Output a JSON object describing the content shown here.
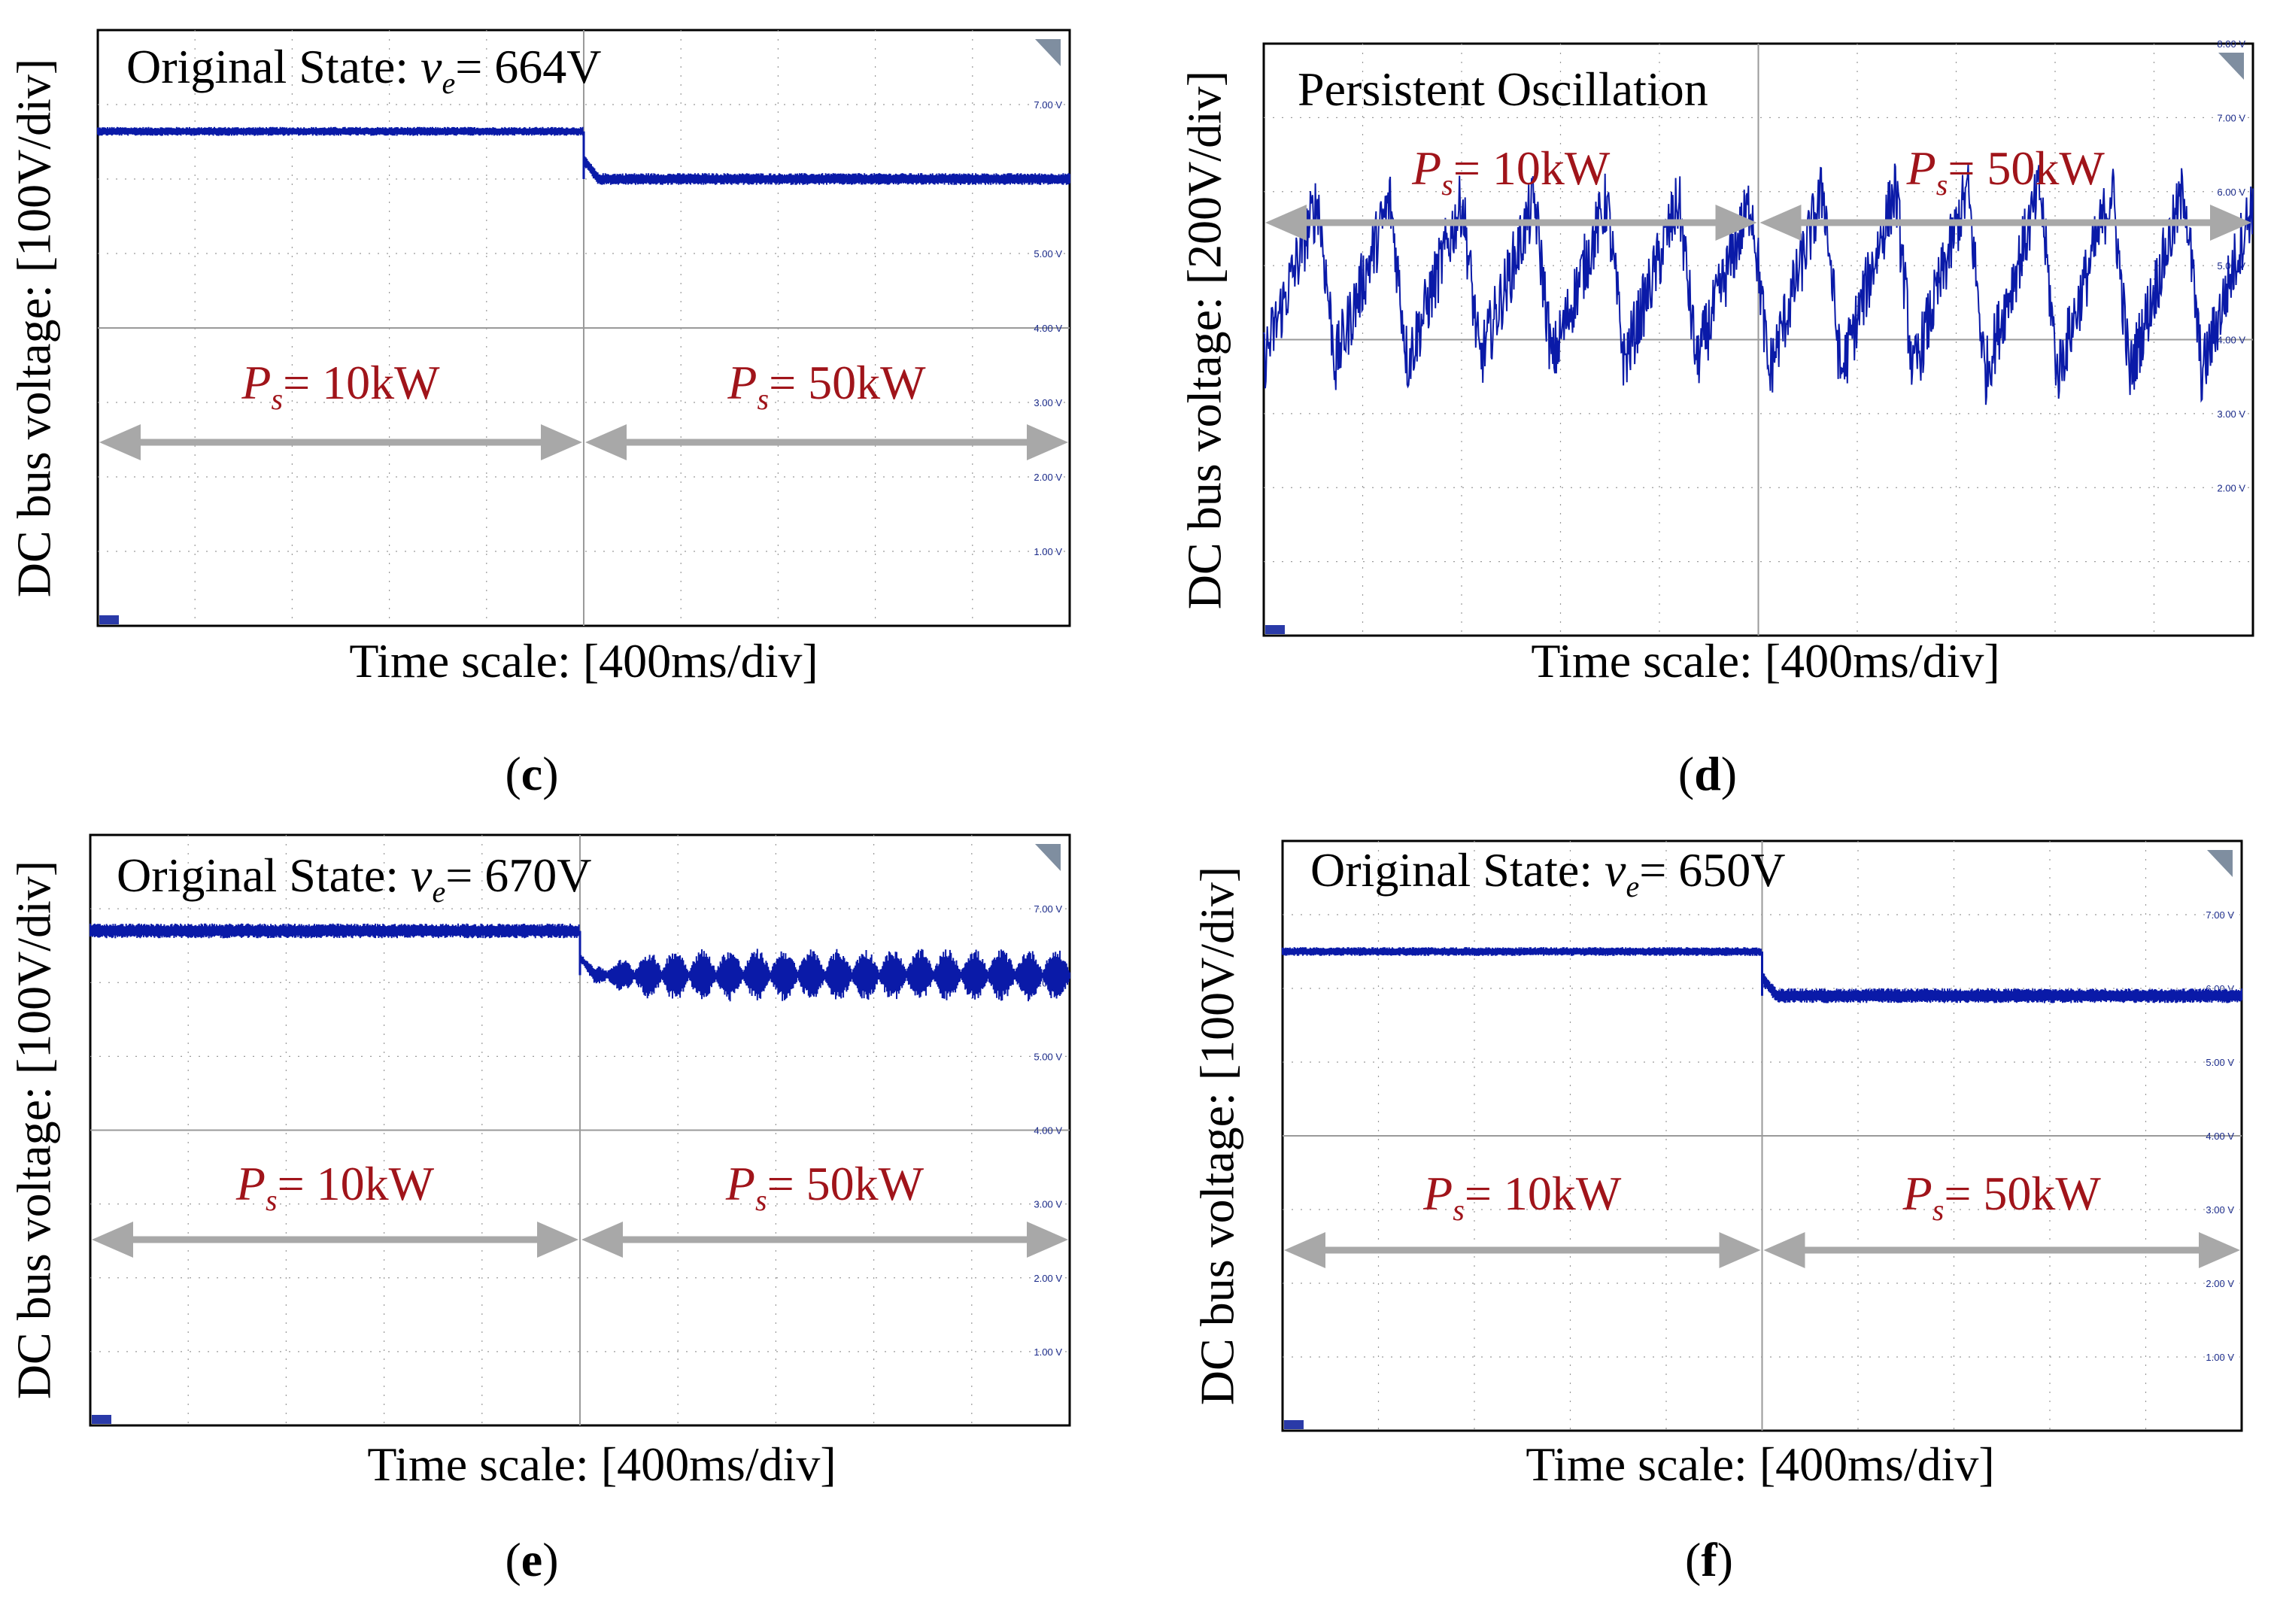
{
  "chart_data": [
    {
      "panel_label": "(c)",
      "type": "line",
      "title_prefix": "Original State: ",
      "title_var": "v",
      "title_sub": "e",
      "title_value": "= 664V",
      "ylabel": "DC bus voltage: [100V/div]",
      "xlabel": "Time scale: [400ms/div]",
      "y_ticks": [
        "7.00 V",
        "6.00 V",
        "5.00 V",
        "4.00 V",
        "3.00 V",
        "2.00 V",
        "1.00 V"
      ],
      "y_tick_values": [
        700,
        600,
        500,
        400,
        300,
        200,
        100
      ],
      "ylim": [
        0,
        800
      ],
      "xlim": [
        0,
        10
      ],
      "grid": true,
      "annotations": [
        {
          "var": "P",
          "sub": "s",
          "value": "= 10kW"
        },
        {
          "var": "P",
          "sub": "s",
          "value": "= 50kW"
        }
      ],
      "step_time_div": 5,
      "series": [
        {
          "behavior": "steady",
          "before_v": 664,
          "after_v": 600,
          "ripple_before": 6,
          "ripple_after": 8
        }
      ],
      "line_color": "#0a1aa8"
    },
    {
      "panel_label": "(d)",
      "type": "line",
      "title_text": "Persistent Oscillation",
      "ylabel": "DC bus voltage: [200V/div]",
      "xlabel": "Time scale: [400ms/div]",
      "y_ticks": [
        "8.00 V",
        "7.00 V",
        "6.00 V",
        "5.00 V",
        "4.00 V",
        "3.00 V",
        "2.00 V"
      ],
      "y_tick_values": [
        800,
        700,
        600,
        500,
        400,
        300,
        200
      ],
      "ylim": [
        0,
        800
      ],
      "xlim": [
        0,
        10
      ],
      "grid": true,
      "annotations": [
        {
          "var": "P",
          "sub": "s",
          "value": "= 10kW"
        },
        {
          "var": "P",
          "sub": "s",
          "value": "= 50kW"
        }
      ],
      "step_time_div": 5,
      "series": [
        {
          "behavior": "oscillation",
          "center_v": 480,
          "amplitude_v": 120,
          "period_div": 0.73
        }
      ],
      "line_color": "#0a1aa8"
    },
    {
      "panel_label": "(e)",
      "type": "line",
      "title_prefix": "Original State:  ",
      "title_var": "v",
      "title_sub": "e",
      "title_value": "= 670V",
      "ylabel": "DC bus voltage: [100V/div]",
      "xlabel": "Time scale: [400ms/div]",
      "y_ticks": [
        "7.00 V",
        "6.00 V",
        "5.00 V",
        "4.00 V",
        "3.00 V",
        "2.00 V",
        "1.00 V"
      ],
      "y_tick_values": [
        700,
        600,
        500,
        400,
        300,
        200,
        100
      ],
      "ylim": [
        0,
        800
      ],
      "xlim": [
        0,
        10
      ],
      "grid": true,
      "annotations": [
        {
          "var": "P",
          "sub": "s",
          "value": "= 10kW"
        },
        {
          "var": "P",
          "sub": "s",
          "value": "= 50kW"
        }
      ],
      "step_time_div": 5,
      "series": [
        {
          "behavior": "beating",
          "before_v": 670,
          "after_v": 610,
          "ripple_before": 10,
          "ripple_after": 30
        }
      ],
      "line_color": "#0a1aa8"
    },
    {
      "panel_label": "(f)",
      "type": "line",
      "title_prefix": "Original State:  ",
      "title_var": "v",
      "title_sub": "e",
      "title_value": "= 650V",
      "ylabel": "DC bus voltage: [100V/div]",
      "xlabel": "Time scale: [400ms/div]",
      "y_ticks": [
        "7.00 V",
        "6.00 V",
        "5.00 V",
        "4.00 V",
        "3.00 V",
        "2.00 V",
        "1.00 V"
      ],
      "y_tick_values": [
        700,
        600,
        500,
        400,
        300,
        200,
        100
      ],
      "ylim": [
        0,
        800
      ],
      "xlim": [
        0,
        10
      ],
      "grid": true,
      "annotations": [
        {
          "var": "P",
          "sub": "s",
          "value": "= 10kW"
        },
        {
          "var": "P",
          "sub": "s",
          "value": "= 50kW"
        }
      ],
      "step_time_div": 5,
      "series": [
        {
          "behavior": "steady",
          "before_v": 650,
          "after_v": 590,
          "ripple_before": 6,
          "ripple_after": 10
        }
      ],
      "line_color": "#0a1aa8"
    }
  ],
  "colors": {
    "trace": "#0a1aa8",
    "annotation_text": "#a0141a",
    "arrow": "#a8a8a8",
    "grid": "#9a9a9a",
    "tick_text": "#1a2a8a"
  },
  "icons": [
    "probe-marker-icon",
    "channel-marker-icon"
  ]
}
